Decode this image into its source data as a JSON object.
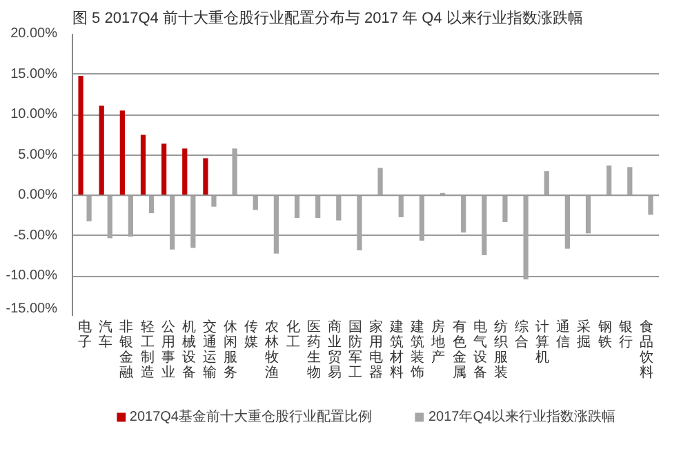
{
  "chart_data": {
    "type": "bar",
    "title": "图 5  2017Q4 前十大重仓股行业配置分布与 2017 年 Q4 以来行业指数涨跌幅",
    "categories": [
      "电子",
      "汽车",
      "非银金融",
      "轻工制造",
      "公用事业",
      "机械设备",
      "交通运输",
      "休闲服务",
      "传媒",
      "农林牧渔",
      "化工",
      "医药生物",
      "商业贸易",
      "国防军工",
      "家用电器",
      "建筑材料",
      "建筑装饰",
      "房地产",
      "有色金属",
      "电气设备",
      "纺织服装",
      "综合",
      "计算机",
      "通信",
      "采掘",
      "钢铁",
      "银行",
      "食品饮料"
    ],
    "series": [
      {
        "name": "2017Q4基金前十大重仓股行业配置比例",
        "color": "#c00000",
        "values": [
          14.8,
          11.1,
          10.5,
          7.5,
          6.4,
          5.8,
          4.6,
          null,
          null,
          null,
          null,
          null,
          null,
          null,
          null,
          null,
          null,
          null,
          null,
          null,
          null,
          null,
          null,
          null,
          null,
          null,
          null,
          null
        ]
      },
      {
        "name": "2017年Q4以来行业指数涨跌幅",
        "color": "#a6a6a6",
        "values": [
          -3.2,
          -5.3,
          -5.1,
          -2.2,
          -6.7,
          -6.5,
          -1.4,
          5.8,
          -1.8,
          -7.2,
          -2.8,
          -2.8,
          -3.1,
          -6.8,
          3.4,
          -2.7,
          -5.6,
          0.3,
          -4.6,
          -7.4,
          -3.3,
          -10.4,
          3.0,
          -6.6,
          -4.7,
          3.7,
          3.5,
          -2.4
        ]
      }
    ],
    "ylim": [
      -15,
      20
    ],
    "yticks": [
      {
        "value": -15,
        "label": "-15.00%"
      },
      {
        "value": -10,
        "label": "-10.00%"
      },
      {
        "value": -5,
        "label": "-5.00%"
      },
      {
        "value": 0,
        "label": "0.00%"
      },
      {
        "value": 5,
        "label": "5.00%"
      },
      {
        "value": 10,
        "label": "10.00%"
      },
      {
        "value": 15,
        "label": "15.00%"
      },
      {
        "value": 20,
        "label": "20.00%"
      }
    ],
    "grid": "y",
    "legend": "bottom"
  }
}
